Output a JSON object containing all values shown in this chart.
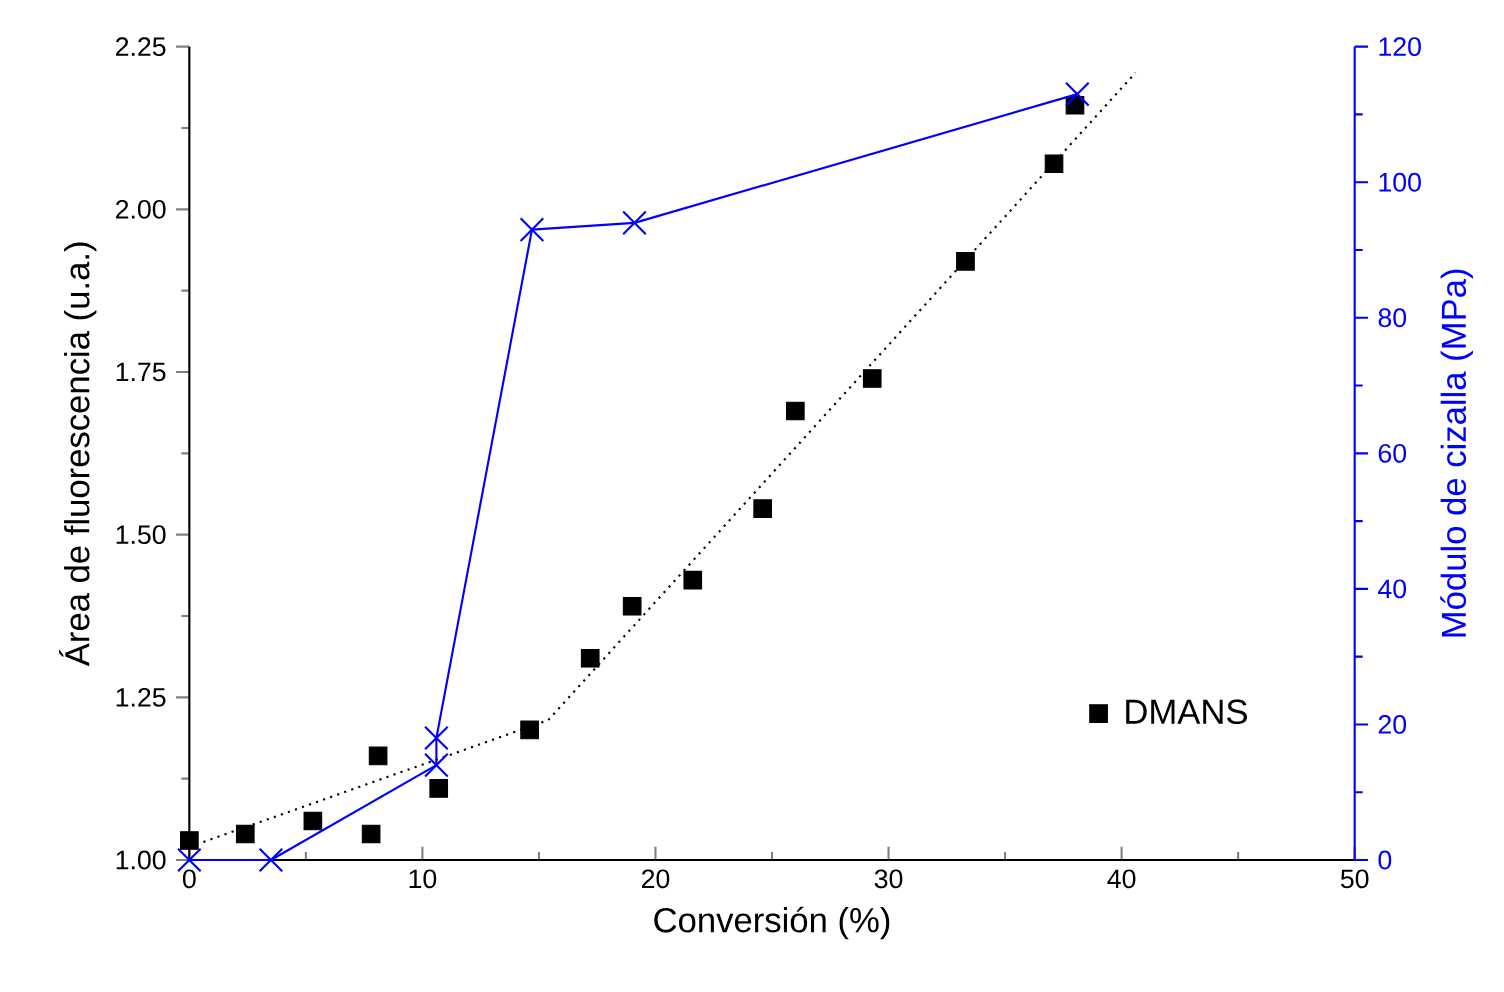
{
  "chart_data": {
    "type": "scatter",
    "xlabel": "Conversión (%)",
    "ylabel": "Área de fluorescencia (u.a.)",
    "y2label": "Módulo de cizalla (MPa)",
    "xlim": [
      0,
      50
    ],
    "xticks": [
      0,
      10,
      20,
      30,
      40,
      50
    ],
    "ylim": [
      1,
      2.25
    ],
    "yticks": [
      {
        "value": 1,
        "label": "1.00"
      },
      {
        "value": 1.25,
        "label": "1.25"
      },
      {
        "value": 1.5,
        "label": "1.50"
      },
      {
        "value": 1.75,
        "label": "1.75"
      },
      {
        "value": 2,
        "label": "2.00"
      },
      {
        "value": 2.25,
        "label": "2.25"
      }
    ],
    "y2lim": [
      0,
      120
    ],
    "y2ticks": [
      0,
      20,
      40,
      60,
      80,
      100,
      120
    ],
    "grid": false,
    "legend": "bottom right",
    "series": [
      {
        "name": "DMANS",
        "marker": "square",
        "color": "#000000",
        "x": [
          0,
          2.4,
          5.3,
          7.8,
          8.1,
          10.7,
          14.6,
          17.2,
          19.0,
          21.6,
          24.6,
          26.0,
          29.3,
          33.3,
          37.1,
          38.0
        ],
        "values": [
          1.03,
          1.04,
          1.06,
          1.04,
          1.16,
          1.11,
          1.2,
          1.31,
          1.39,
          1.43,
          1.54,
          1.69,
          1.74,
          1.92,
          2.07,
          2.16
        ]
      },
      {
        "type": "line",
        "line_style": "dotted",
        "marker": "none",
        "color": "#000000",
        "x": [
          0,
          15.4,
          40.6
        ],
        "values": [
          1.02,
          1.215,
          2.21
        ]
      },
      {
        "type": "line",
        "axis": "y2",
        "line_style": "solid",
        "marker": "cross",
        "color": "#0000ff",
        "x": [
          0,
          3.5,
          10.6,
          10.6,
          14.7,
          19.1,
          38.1
        ],
        "values": [
          0,
          0,
          14,
          18,
          93,
          94,
          113
        ]
      }
    ]
  }
}
